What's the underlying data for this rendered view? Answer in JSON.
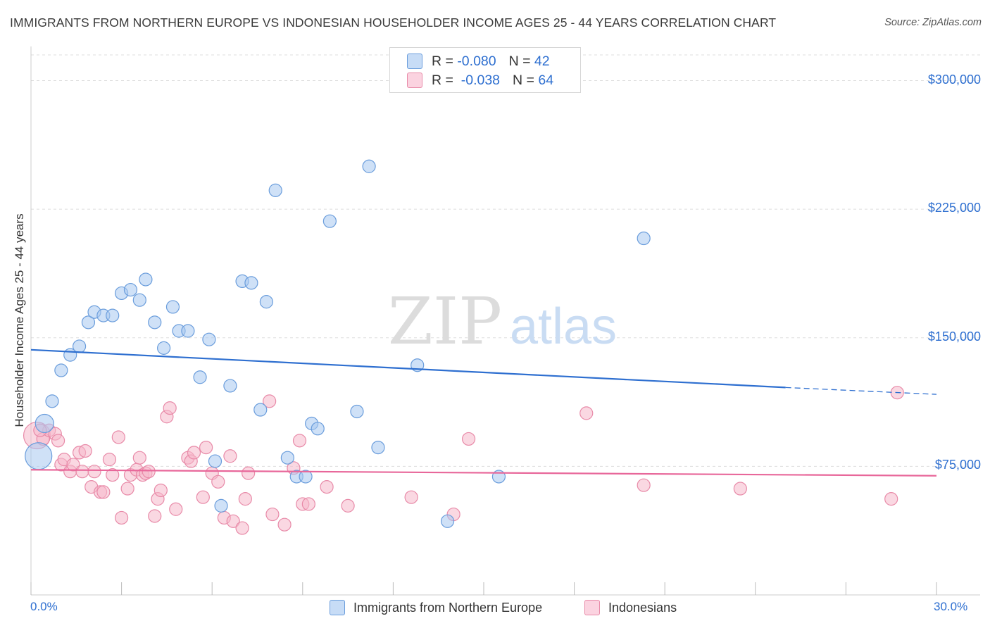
{
  "title": "IMMIGRANTS FROM NORTHERN EUROPE VS INDONESIAN HOUSEHOLDER INCOME AGES 25 - 44 YEARS CORRELATION CHART",
  "source": "Source: ZipAtlas.com",
  "watermark": {
    "zip": "ZIP",
    "atlas": "atlas"
  },
  "legend": {
    "r_label": "R =",
    "n_label": "N =",
    "rows": [
      {
        "r": "-0.080",
        "n": "42",
        "color": "#a8c8f0"
      },
      {
        "r": "-0.038",
        "n": "64",
        "color": "#f5b8cb"
      }
    ]
  },
  "bottom_legend": [
    "Immigrants from Northern Europe",
    "Indonesians"
  ],
  "colors": {
    "blue_fill": "#a8c8f0",
    "blue_stroke": "#6a9ddc",
    "blue_line": "#2e6fd0",
    "pink_fill": "#f5b8cb",
    "pink_stroke": "#e88aa8",
    "pink_line": "#e8679a",
    "axis_text": "#2e6fd0",
    "grid": "#dddddd"
  },
  "chart_data": {
    "type": "scatter",
    "title": "IMMIGRANTS FROM NORTHERN EUROPE VS INDONESIAN HOUSEHOLDER INCOME AGES 25 - 44 YEARS CORRELATION CHART",
    "xlabel": "",
    "ylabel": "Householder Income Ages 25 - 44 years",
    "xlim": [
      0,
      30
    ],
    "ylim": [
      0,
      315000
    ],
    "x_tick_labels": [
      "0.0%",
      "30.0%"
    ],
    "y_ticks": [
      75000,
      150000,
      225000,
      300000
    ],
    "y_tick_labels": [
      "$75,000",
      "$150,000",
      "$225,000",
      "$300,000"
    ],
    "grid": true,
    "legend_position": "top-center",
    "series": [
      {
        "name": "Immigrants from Northern Europe",
        "r": -0.08,
        "n": 42,
        "trend": {
          "x0": 0,
          "y0": 143000,
          "x1": 25.0,
          "y1": 121000,
          "dash_to_x": 30,
          "dash_to_y": 117000
        },
        "points": [
          [
            0.25,
            81000,
            "lg"
          ],
          [
            0.45,
            100000,
            "md"
          ],
          [
            0.7,
            113000
          ],
          [
            1.0,
            131000
          ],
          [
            1.3,
            140000
          ],
          [
            1.6,
            145000
          ],
          [
            1.9,
            159000
          ],
          [
            2.1,
            165000
          ],
          [
            2.4,
            163000
          ],
          [
            2.7,
            163000
          ],
          [
            3.0,
            176000
          ],
          [
            3.3,
            178000
          ],
          [
            3.6,
            172000
          ],
          [
            3.8,
            184000
          ],
          [
            4.1,
            159000
          ],
          [
            4.4,
            144000
          ],
          [
            4.7,
            168000
          ],
          [
            4.9,
            154000
          ],
          [
            5.2,
            154000
          ],
          [
            5.6,
            127000
          ],
          [
            5.9,
            149000
          ],
          [
            6.1,
            78000
          ],
          [
            6.3,
            52000
          ],
          [
            6.6,
            122000
          ],
          [
            7.0,
            183000
          ],
          [
            7.3,
            182000
          ],
          [
            7.8,
            171000
          ],
          [
            7.6,
            108000
          ],
          [
            8.1,
            236000
          ],
          [
            8.5,
            80000
          ],
          [
            8.8,
            69000
          ],
          [
            9.1,
            69000
          ],
          [
            9.3,
            100000
          ],
          [
            9.5,
            97000
          ],
          [
            9.9,
            218000
          ],
          [
            10.8,
            107000
          ],
          [
            11.2,
            250000
          ],
          [
            11.5,
            86000
          ],
          [
            12.8,
            134000
          ],
          [
            13.8,
            43000
          ],
          [
            15.5,
            69000
          ],
          [
            20.3,
            208000
          ]
        ]
      },
      {
        "name": "Indonesians",
        "r": -0.038,
        "n": 64,
        "trend": {
          "x0": 0,
          "y0": 73000,
          "x1": 30,
          "y1": 69500
        },
        "points": [
          [
            0.2,
            93000,
            "lg"
          ],
          [
            0.4,
            91000
          ],
          [
            0.6,
            96000
          ],
          [
            0.8,
            94000
          ],
          [
            0.9,
            90000
          ],
          [
            1.0,
            76000
          ],
          [
            1.1,
            79000
          ],
          [
            1.3,
            72000
          ],
          [
            1.4,
            76000
          ],
          [
            1.6,
            83000
          ],
          [
            1.7,
            72000
          ],
          [
            1.8,
            84000
          ],
          [
            2.0,
            63000
          ],
          [
            2.1,
            72000
          ],
          [
            2.3,
            60000
          ],
          [
            2.4,
            60000
          ],
          [
            2.6,
            79000
          ],
          [
            2.7,
            70000
          ],
          [
            2.9,
            92000
          ],
          [
            3.0,
            45000
          ],
          [
            3.2,
            62000
          ],
          [
            3.3,
            70000
          ],
          [
            3.5,
            73000
          ],
          [
            3.6,
            80000
          ],
          [
            3.7,
            70000
          ],
          [
            3.8,
            71000
          ],
          [
            3.9,
            72000
          ],
          [
            4.1,
            46000
          ],
          [
            4.2,
            56000
          ],
          [
            4.3,
            61000
          ],
          [
            4.5,
            104000
          ],
          [
            4.6,
            109000
          ],
          [
            4.8,
            50000
          ],
          [
            5.2,
            80000
          ],
          [
            5.3,
            78000
          ],
          [
            5.4,
            83000
          ],
          [
            5.7,
            57000
          ],
          [
            5.8,
            86000
          ],
          [
            6.0,
            71000
          ],
          [
            6.2,
            66000
          ],
          [
            6.4,
            45000
          ],
          [
            6.6,
            81000
          ],
          [
            6.7,
            43000
          ],
          [
            7.0,
            39000
          ],
          [
            7.1,
            56000
          ],
          [
            7.2,
            71000
          ],
          [
            7.9,
            113000
          ],
          [
            8.0,
            47000
          ],
          [
            8.4,
            41000
          ],
          [
            8.7,
            74000
          ],
          [
            8.9,
            90000
          ],
          [
            9.0,
            53000
          ],
          [
            9.2,
            53000
          ],
          [
            9.8,
            63000
          ],
          [
            10.5,
            52000
          ],
          [
            12.6,
            57000
          ],
          [
            14.0,
            47000
          ],
          [
            14.5,
            91000
          ],
          [
            18.4,
            106000
          ],
          [
            20.3,
            64000
          ],
          [
            23.5,
            62000
          ],
          [
            28.5,
            56000
          ],
          [
            28.7,
            118000
          ],
          [
            0.3,
            96000
          ]
        ]
      }
    ]
  }
}
